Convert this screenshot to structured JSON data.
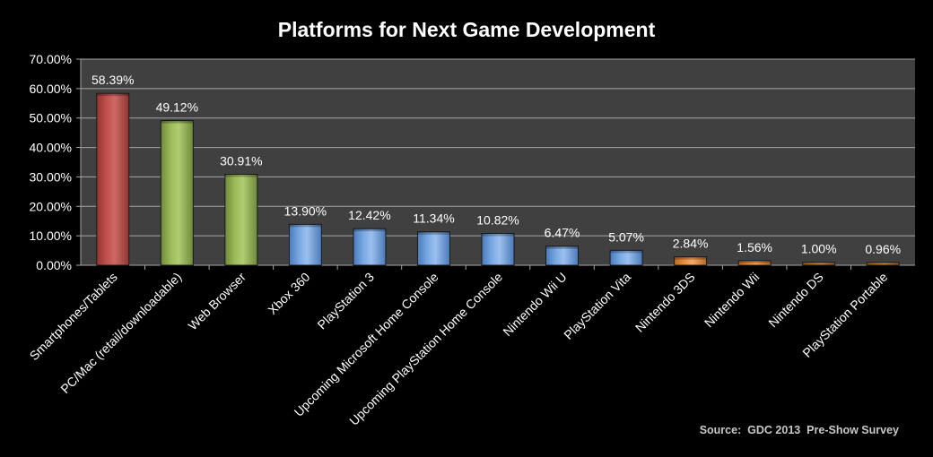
{
  "chart_data": {
    "type": "bar",
    "title": "Platforms for Next Game Development",
    "xlabel": "",
    "ylabel": "",
    "categories": [
      "Smartphones/Tablets",
      "PC/Mac (retail/downloadable)",
      "Web Browser",
      "Xbox 360",
      "PlayStation 3",
      "Upcoming Microsoft Home Console",
      "Upcoming PlayStation Home Console",
      "Nintendo Wii U",
      "PlayStation Vita",
      "Nintendo 3DS",
      "Nintendo Wii",
      "Nintendo DS",
      "PlayStation Portable"
    ],
    "values": [
      58.39,
      49.12,
      30.91,
      13.9,
      12.42,
      11.34,
      10.82,
      6.47,
      5.07,
      2.84,
      1.56,
      1.0,
      0.96
    ],
    "value_labels": [
      "58.39%",
      "49.12%",
      "30.91%",
      "13.90%",
      "12.42%",
      "11.34%",
      "10.82%",
      "6.47%",
      "5.07%",
      "2.84%",
      "1.56%",
      "1.00%",
      "0.96%"
    ],
    "bar_colors": [
      "#c0504d",
      "#9bbb59",
      "#9bbb59",
      "#4f81bd",
      "#4f81bd",
      "#4f81bd",
      "#4f81bd",
      "#4f81bd",
      "#4f81bd",
      "#f79646",
      "#f79646",
      "#f79646",
      "#f79646"
    ],
    "ylim": [
      0,
      70
    ],
    "yticks": [
      0,
      10,
      20,
      30,
      40,
      50,
      60,
      70
    ],
    "ytick_labels": [
      "0.00%",
      "10.00%",
      "20.00%",
      "30.00%",
      "40.00%",
      "50.00%",
      "60.00%",
      "70.00%"
    ],
    "grid": true,
    "legend": "none",
    "plot_background": "#404040",
    "source": "Source:  GDC 2013  Pre-Show Survey"
  }
}
